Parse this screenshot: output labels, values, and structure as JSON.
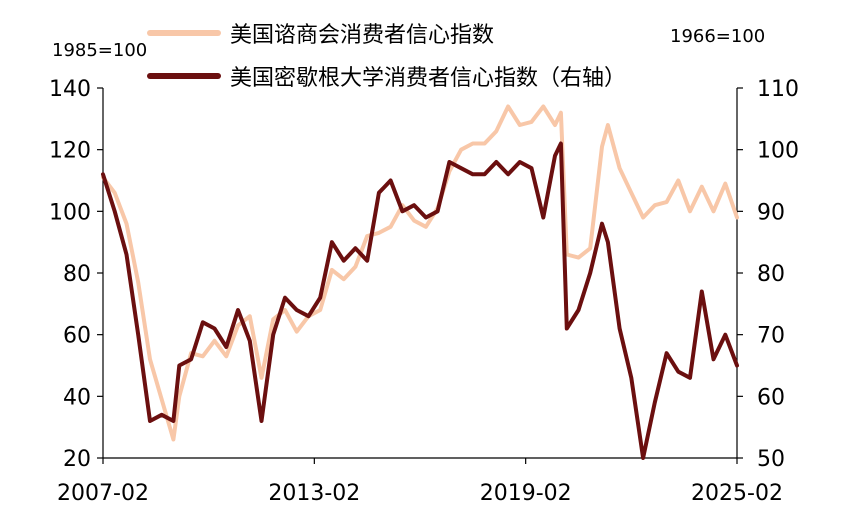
{
  "chart_data": {
    "type": "line",
    "left_axis": {
      "unit_label": "1985=100",
      "ylim": [
        20,
        140
      ],
      "ticks": [
        20,
        40,
        60,
        80,
        100,
        120,
        140
      ]
    },
    "right_axis": {
      "unit_label": "1966=100",
      "ylim": [
        50,
        110
      ],
      "ticks": [
        50,
        60,
        70,
        80,
        90,
        100,
        110
      ]
    },
    "x_ticks": [
      "2007-02",
      "2013-02",
      "2019-02",
      "2025-02"
    ],
    "xlim": [
      "2007-02",
      "2025-02"
    ],
    "grid": false,
    "legend_position": "top-center",
    "series": [
      {
        "name": "美国谘商会消费者信心指数",
        "axis": "left",
        "color": "#f8c7a8",
        "x": [
          "2007-02",
          "2007-06",
          "2007-10",
          "2008-02",
          "2008-06",
          "2008-10",
          "2009-02",
          "2009-04",
          "2009-08",
          "2009-12",
          "2010-04",
          "2010-08",
          "2010-12",
          "2011-04",
          "2011-08",
          "2011-12",
          "2012-04",
          "2012-08",
          "2012-12",
          "2013-04",
          "2013-08",
          "2013-12",
          "2014-04",
          "2014-08",
          "2014-12",
          "2015-04",
          "2015-08",
          "2015-12",
          "2016-04",
          "2016-08",
          "2016-12",
          "2017-04",
          "2017-08",
          "2017-12",
          "2018-04",
          "2018-08",
          "2018-12",
          "2019-04",
          "2019-08",
          "2019-12",
          "2020-02",
          "2020-04",
          "2020-08",
          "2020-12",
          "2021-04",
          "2021-06",
          "2021-10",
          "2022-02",
          "2022-06",
          "2022-10",
          "2023-02",
          "2023-06",
          "2023-10",
          "2024-02",
          "2024-06",
          "2024-10",
          "2025-02"
        ],
        "values": [
          111,
          106,
          96,
          77,
          52,
          39,
          26,
          40,
          54,
          53,
          58,
          53,
          63,
          66,
          46,
          65,
          68,
          61,
          66,
          68,
          81,
          78,
          82,
          92,
          93,
          95,
          102,
          97,
          95,
          101,
          113,
          120,
          122,
          122,
          126,
          134,
          128,
          129,
          134,
          128,
          132,
          86,
          85,
          88,
          121,
          128,
          114,
          106,
          98,
          102,
          103,
          110,
          100,
          108,
          100,
          109,
          98
        ]
      },
      {
        "name": "美国密歇根大学消费者信心指数（右轴）",
        "axis": "right",
        "color": "#6b0f0f",
        "x": [
          "2007-02",
          "2007-06",
          "2007-10",
          "2008-02",
          "2008-06",
          "2008-10",
          "2009-02",
          "2009-04",
          "2009-08",
          "2009-12",
          "2010-04",
          "2010-08",
          "2010-12",
          "2011-04",
          "2011-08",
          "2011-12",
          "2012-04",
          "2012-08",
          "2012-12",
          "2013-04",
          "2013-08",
          "2013-12",
          "2014-04",
          "2014-08",
          "2014-12",
          "2015-04",
          "2015-08",
          "2015-12",
          "2016-04",
          "2016-08",
          "2016-12",
          "2017-04",
          "2017-08",
          "2017-12",
          "2018-04",
          "2018-08",
          "2018-12",
          "2019-04",
          "2019-08",
          "2019-12",
          "2020-02",
          "2020-04",
          "2020-08",
          "2020-12",
          "2021-04",
          "2021-06",
          "2021-10",
          "2022-02",
          "2022-06",
          "2022-10",
          "2023-02",
          "2023-06",
          "2023-10",
          "2024-02",
          "2024-06",
          "2024-10",
          "2025-02"
        ],
        "values": [
          96,
          90,
          83,
          70,
          56,
          57,
          56,
          65,
          66,
          72,
          71,
          68,
          74,
          69,
          56,
          70,
          76,
          74,
          73,
          76,
          85,
          82,
          84,
          82,
          93,
          95,
          90,
          91,
          89,
          90,
          98,
          97,
          96,
          96,
          98,
          96,
          98,
          97,
          89,
          99,
          101,
          71,
          74,
          80,
          88,
          85,
          71,
          63,
          50,
          59,
          67,
          64,
          63,
          77,
          66,
          70,
          65
        ]
      }
    ]
  }
}
